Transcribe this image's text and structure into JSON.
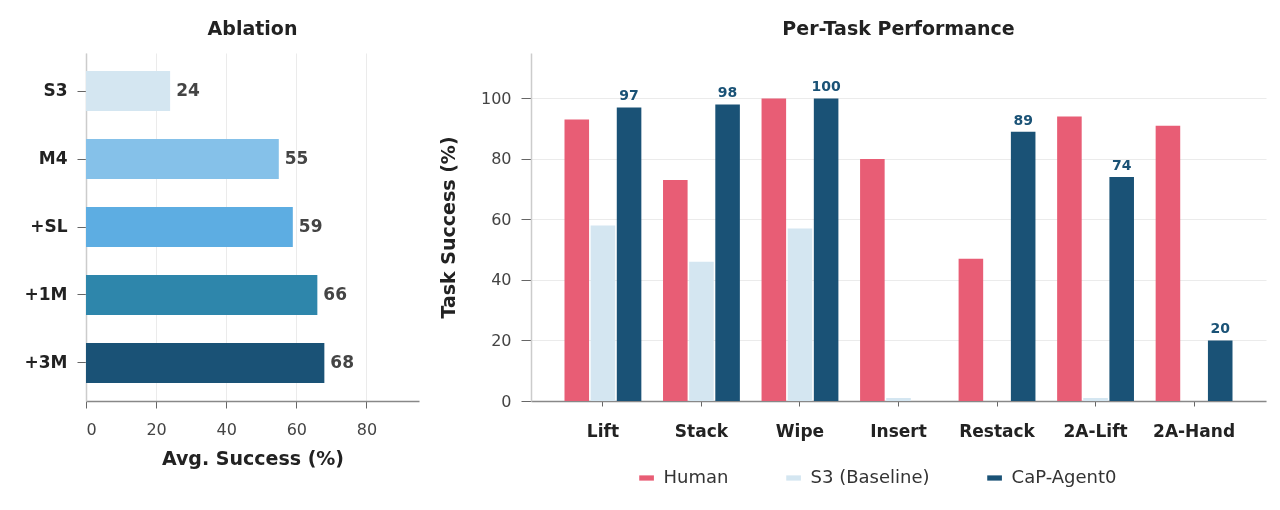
{
  "chart_data": [
    {
      "type": "bar",
      "orientation": "horizontal",
      "title": "Ablation",
      "xlabel": "Avg. Success (%)",
      "categories": [
        "S3",
        "M4",
        "+SL",
        "+1M",
        "+3M"
      ],
      "values": [
        24,
        55,
        59,
        66,
        68
      ],
      "colors": [
        "#d4e6f1",
        "#85c1e9",
        "#5dade2",
        "#2e86ab",
        "#1a5276"
      ],
      "xlim": [
        0,
        95
      ],
      "xticks": [
        0,
        20,
        40,
        60,
        80
      ],
      "grid": "x",
      "data_labels": true
    },
    {
      "type": "bar",
      "title": "Per-Task Performance",
      "ylabel": "Task Success (%)",
      "categories": [
        "Lift",
        "Stack",
        "Wipe",
        "Insert",
        "Restack",
        "2A-Lift",
        "2A-Hand"
      ],
      "series": [
        {
          "name": "Human",
          "color": "#e85d75",
          "values": [
            93,
            73,
            100,
            80,
            47,
            94,
            91
          ]
        },
        {
          "name": "S3 (Baseline)",
          "color": "#d4e6f1",
          "values": [
            58,
            46,
            57,
            1,
            0,
            1,
            0
          ]
        },
        {
          "name": "CaP-Agent0",
          "color": "#1a5276",
          "values": [
            97,
            98,
            100,
            0,
            89,
            74,
            20
          ],
          "value_labels": [
            "97",
            "98",
            "100",
            null,
            "89",
            "74",
            "20"
          ]
        }
      ],
      "ylim": [
        0,
        115
      ],
      "yticks": [
        0,
        20,
        40,
        60,
        80,
        100
      ],
      "grid": "y",
      "legend": "bottom"
    }
  ]
}
